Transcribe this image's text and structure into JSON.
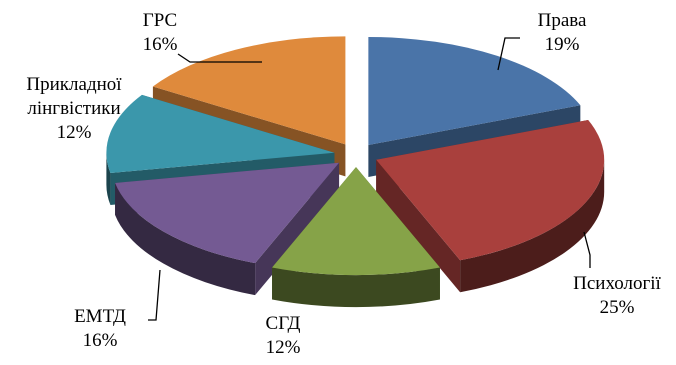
{
  "chart_data": {
    "type": "pie",
    "style": "3d-exploded",
    "legend": "none",
    "slices": [
      {
        "label": "Права",
        "value": 19,
        "value_label": "19%",
        "color": "#4a74a8"
      },
      {
        "label": "Психології",
        "value": 25,
        "value_label": "25%",
        "color": "#a9403d"
      },
      {
        "label": "СГД",
        "value": 12,
        "value_label": "12%",
        "color": "#86a348"
      },
      {
        "label": "ЕМТД",
        "value": 16,
        "value_label": "16%",
        "color": "#745a93"
      },
      {
        "label": "Прикладної лінгвістики",
        "value": 12,
        "value_label": "12%",
        "color": "#3b97ab"
      },
      {
        "label": "ГРС",
        "value": 16,
        "value_label": "16%",
        "color": "#df8a3c"
      }
    ]
  }
}
